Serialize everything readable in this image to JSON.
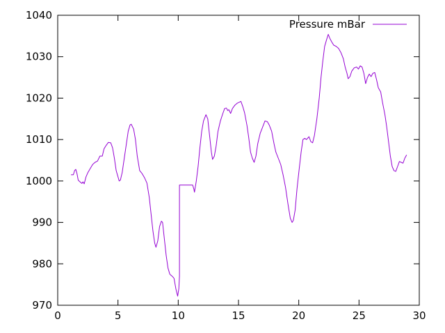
{
  "chart_data": {
    "type": "line",
    "title": "",
    "xlabel": "",
    "ylabel": "",
    "xlim": [
      0,
      30
    ],
    "ylim": [
      970,
      1040
    ],
    "x_ticks": [
      0,
      5,
      10,
      15,
      20,
      25,
      30
    ],
    "y_ticks": [
      970,
      980,
      990,
      1000,
      1010,
      1020,
      1030,
      1040
    ],
    "x_tick_labels": [
      "0",
      "5",
      "10",
      "15",
      "20",
      "25",
      "30"
    ],
    "y_tick_labels": [
      "970",
      "980",
      "990",
      "1000",
      "1010",
      "1020",
      "1030",
      "1040"
    ],
    "grid": false,
    "legend_position": "top-right",
    "series": [
      {
        "name": "Pressure mBar",
        "color": "#9400d3",
        "points": [
          [
            1.1,
            1001.5
          ],
          [
            1.3,
            1001.5
          ],
          [
            1.4,
            1002.5
          ],
          [
            1.5,
            1002.8
          ],
          [
            1.6,
            1001.8
          ],
          [
            1.7,
            1000.2
          ],
          [
            1.85,
            999.8
          ],
          [
            2.0,
            999.4
          ],
          [
            2.1,
            999.8
          ],
          [
            2.2,
            999.3
          ],
          [
            2.35,
            1001.0
          ],
          [
            2.5,
            1002.0
          ],
          [
            2.7,
            1003.0
          ],
          [
            2.9,
            1004.0
          ],
          [
            3.1,
            1004.5
          ],
          [
            3.3,
            1004.8
          ],
          [
            3.5,
            1006.0
          ],
          [
            3.7,
            1006.0
          ],
          [
            3.85,
            1007.8
          ],
          [
            4.0,
            1008.5
          ],
          [
            4.2,
            1009.3
          ],
          [
            4.4,
            1009.2
          ],
          [
            4.55,
            1008.0
          ],
          [
            4.7,
            1005.5
          ],
          [
            4.85,
            1002.5
          ],
          [
            5.0,
            1001.0
          ],
          [
            5.1,
            1000.0
          ],
          [
            5.2,
            1000.2
          ],
          [
            5.35,
            1002.0
          ],
          [
            5.5,
            1005.0
          ],
          [
            5.7,
            1009.0
          ],
          [
            5.85,
            1012.0
          ],
          [
            6.0,
            1013.5
          ],
          [
            6.1,
            1013.7
          ],
          [
            6.3,
            1012.5
          ],
          [
            6.45,
            1010.0
          ],
          [
            6.6,
            1006.0
          ],
          [
            6.8,
            1002.5
          ],
          [
            7.0,
            1001.8
          ],
          [
            7.2,
            1000.8
          ],
          [
            7.4,
            999.5
          ],
          [
            7.6,
            996.0
          ],
          [
            7.75,
            992.0
          ],
          [
            7.9,
            988.0
          ],
          [
            8.05,
            985.0
          ],
          [
            8.15,
            984.0
          ],
          [
            8.3,
            985.5
          ],
          [
            8.45,
            989.0
          ],
          [
            8.6,
            990.3
          ],
          [
            8.7,
            990.0
          ],
          [
            8.85,
            986.0
          ],
          [
            9.0,
            982.0
          ],
          [
            9.15,
            979.0
          ],
          [
            9.3,
            977.5
          ],
          [
            9.5,
            977.0
          ],
          [
            9.65,
            976.5
          ],
          [
            9.8,
            974.0
          ],
          [
            9.95,
            972.2
          ],
          [
            10.05,
            974.0
          ],
          [
            10.1,
            977.0
          ],
          [
            10.1,
            999.0
          ],
          [
            11.2,
            999.0
          ],
          [
            11.3,
            998.0
          ],
          [
            11.35,
            997.3
          ],
          [
            11.5,
            1000.0
          ],
          [
            11.65,
            1003.5
          ],
          [
            11.8,
            1008.0
          ],
          [
            11.95,
            1012.0
          ],
          [
            12.1,
            1014.5
          ],
          [
            12.3,
            1016.0
          ],
          [
            12.45,
            1015.0
          ],
          [
            12.6,
            1011.0
          ],
          [
            12.75,
            1007.0
          ],
          [
            12.85,
            1005.2
          ],
          [
            13.0,
            1006.0
          ],
          [
            13.15,
            1008.5
          ],
          [
            13.3,
            1012.0
          ],
          [
            13.5,
            1014.5
          ],
          [
            13.7,
            1016.3
          ],
          [
            13.85,
            1017.5
          ],
          [
            14.0,
            1017.6
          ],
          [
            14.1,
            1017.0
          ],
          [
            14.2,
            1017.2
          ],
          [
            14.35,
            1016.3
          ],
          [
            14.5,
            1017.5
          ],
          [
            14.7,
            1018.3
          ],
          [
            14.9,
            1018.8
          ],
          [
            15.05,
            1019.0
          ],
          [
            15.2,
            1019.2
          ],
          [
            15.35,
            1018.0
          ],
          [
            15.5,
            1016.5
          ],
          [
            15.7,
            1013.5
          ],
          [
            15.85,
            1010.5
          ],
          [
            16.0,
            1007.0
          ],
          [
            16.15,
            1005.5
          ],
          [
            16.3,
            1004.5
          ],
          [
            16.45,
            1006.0
          ],
          [
            16.6,
            1009.0
          ],
          [
            16.8,
            1011.5
          ],
          [
            17.0,
            1013.0
          ],
          [
            17.2,
            1014.5
          ],
          [
            17.4,
            1014.3
          ],
          [
            17.55,
            1013.5
          ],
          [
            17.75,
            1012.0
          ],
          [
            17.95,
            1009.0
          ],
          [
            18.1,
            1007.0
          ],
          [
            18.3,
            1005.5
          ],
          [
            18.5,
            1004.0
          ],
          [
            18.7,
            1001.5
          ],
          [
            18.9,
            998.5
          ],
          [
            19.1,
            994.5
          ],
          [
            19.3,
            991.0
          ],
          [
            19.45,
            990.0
          ],
          [
            19.55,
            990.5
          ],
          [
            19.7,
            993.0
          ],
          [
            19.85,
            998.0
          ],
          [
            20.0,
            1002.0
          ],
          [
            20.2,
            1007.0
          ],
          [
            20.35,
            1010.0
          ],
          [
            20.5,
            1010.3
          ],
          [
            20.65,
            1010.0
          ],
          [
            20.85,
            1010.7
          ],
          [
            21.0,
            1009.5
          ],
          [
            21.15,
            1009.2
          ],
          [
            21.3,
            1011.0
          ],
          [
            21.5,
            1015.0
          ],
          [
            21.7,
            1020.0
          ],
          [
            21.85,
            1025.0
          ],
          [
            22.0,
            1029.0
          ],
          [
            22.15,
            1032.5
          ],
          [
            22.3,
            1034.0
          ],
          [
            22.45,
            1035.4
          ],
          [
            22.6,
            1034.3
          ],
          [
            22.75,
            1033.5
          ],
          [
            22.9,
            1032.8
          ],
          [
            23.1,
            1032.5
          ],
          [
            23.3,
            1032.0
          ],
          [
            23.5,
            1031.0
          ],
          [
            23.7,
            1029.5
          ],
          [
            23.85,
            1027.5
          ],
          [
            24.0,
            1026.0
          ],
          [
            24.1,
            1024.7
          ],
          [
            24.25,
            1025.2
          ],
          [
            24.4,
            1026.5
          ],
          [
            24.6,
            1027.3
          ],
          [
            24.8,
            1027.5
          ],
          [
            24.95,
            1027.0
          ],
          [
            25.1,
            1027.8
          ],
          [
            25.25,
            1027.5
          ],
          [
            25.4,
            1026.0
          ],
          [
            25.55,
            1023.5
          ],
          [
            25.7,
            1025.0
          ],
          [
            25.85,
            1025.8
          ],
          [
            26.0,
            1025.2
          ],
          [
            26.15,
            1026.0
          ],
          [
            26.3,
            1026.2
          ],
          [
            26.45,
            1024.5
          ],
          [
            26.6,
            1022.5
          ],
          [
            26.8,
            1021.5
          ],
          [
            26.95,
            1019.0
          ],
          [
            27.15,
            1016.0
          ],
          [
            27.3,
            1013.0
          ],
          [
            27.45,
            1009.5
          ],
          [
            27.6,
            1006.0
          ],
          [
            27.75,
            1003.5
          ],
          [
            27.9,
            1002.5
          ],
          [
            28.05,
            1002.3
          ],
          [
            28.2,
            1003.5
          ],
          [
            28.35,
            1004.7
          ],
          [
            28.5,
            1004.5
          ],
          [
            28.65,
            1004.3
          ],
          [
            28.8,
            1005.5
          ],
          [
            28.95,
            1006.3
          ]
        ]
      }
    ]
  }
}
